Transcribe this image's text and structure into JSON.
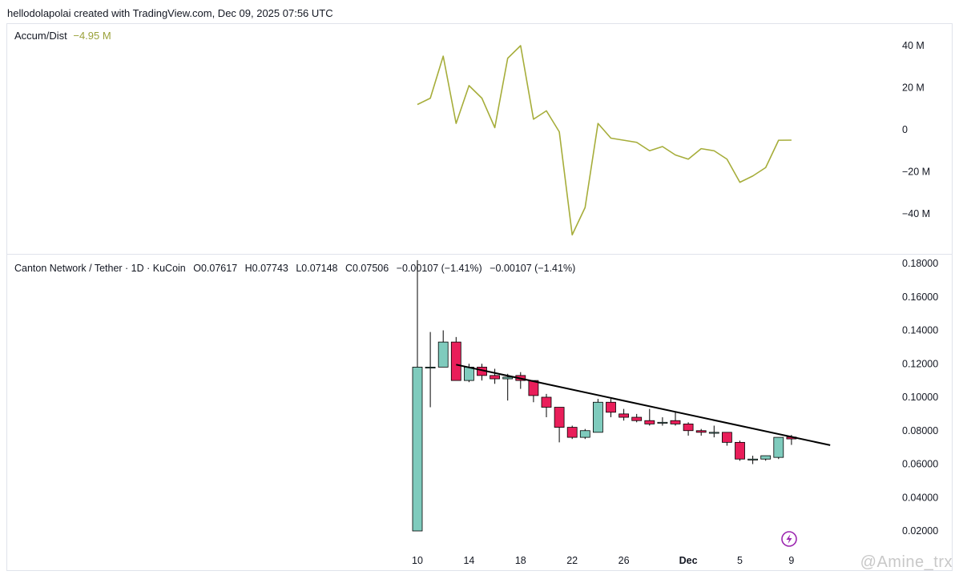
{
  "header": {
    "text": "hellodolapolai created with TradingView.com, Dec 09, 2025 07:56 UTC"
  },
  "indicator": {
    "name": "Accum/Dist",
    "value": "−4.95 M"
  },
  "symbol": {
    "name": "Canton Network / Tether · 1D · KuCoin",
    "open": "O0.07617",
    "high": "H0.07743",
    "low": "L0.07148",
    "close": "C0.07506",
    "change1": "−0.00107 (−1.41%)",
    "change2": "−0.00107 (−1.41%)"
  },
  "watermark": "@Amine_trx",
  "colors": {
    "up": "#7fcbbd",
    "down": "#e91e5a",
    "ad_line": "#a6ad3a",
    "trendline": "#000000"
  },
  "chart_data": [
    {
      "type": "line",
      "title": "Accum/Dist",
      "y_ticks": [
        "40 M",
        "20 M",
        "0",
        "−20 M",
        "−40 M"
      ],
      "ylim": [
        -52,
        48
      ],
      "series": [
        {
          "name": "Accum/Dist",
          "x_index": [
            0,
            1,
            2,
            3,
            4,
            5,
            6,
            7,
            8,
            9,
            10,
            11,
            12,
            13,
            14,
            15,
            16,
            17,
            18,
            19,
            20,
            21,
            22,
            23,
            24,
            25,
            26,
            27,
            28,
            29
          ],
          "values": [
            12,
            15,
            35,
            3,
            21,
            15,
            1,
            34,
            40,
            5,
            9,
            -1,
            -50,
            -37,
            3,
            -4,
            -5,
            -6,
            -10,
            -8,
            -12,
            -14,
            -9,
            -10,
            -14,
            -25,
            -22,
            -18,
            -5,
            -4.95
          ]
        }
      ]
    },
    {
      "type": "candlestick",
      "title": "Canton Network / Tether · 1D · KuCoin",
      "x_ticks": [
        {
          "label": "10",
          "index": 0
        },
        {
          "label": "14",
          "index": 4
        },
        {
          "label": "18",
          "index": 8
        },
        {
          "label": "22",
          "index": 12
        },
        {
          "label": "26",
          "index": 16
        },
        {
          "label": "Dec",
          "index": 21
        },
        {
          "label": "5",
          "index": 25
        },
        {
          "label": "9",
          "index": 29
        }
      ],
      "y_ticks": [
        "0.18000",
        "0.16000",
        "0.14000",
        "0.12000",
        "0.10000",
        "0.08000",
        "0.06000",
        "0.04000",
        "0.02000"
      ],
      "ylim": [
        0.0105,
        0.182
      ],
      "candles": [
        {
          "o": 0.02,
          "h": 0.182,
          "l": 0.02,
          "c": 0.118
        },
        {
          "o": 0.118,
          "h": 0.139,
          "l": 0.094,
          "c": 0.118
        },
        {
          "o": 0.118,
          "h": 0.14,
          "l": 0.118,
          "c": 0.133
        },
        {
          "o": 0.133,
          "h": 0.136,
          "l": 0.11,
          "c": 0.11
        },
        {
          "o": 0.11,
          "h": 0.12,
          "l": 0.109,
          "c": 0.118
        },
        {
          "o": 0.118,
          "h": 0.12,
          "l": 0.11,
          "c": 0.113
        },
        {
          "o": 0.113,
          "h": 0.117,
          "l": 0.108,
          "c": 0.111
        },
        {
          "o": 0.111,
          "h": 0.114,
          "l": 0.098,
          "c": 0.112
        },
        {
          "o": 0.113,
          "h": 0.115,
          "l": 0.105,
          "c": 0.11
        },
        {
          "o": 0.11,
          "h": 0.11,
          "l": 0.097,
          "c": 0.101
        },
        {
          "o": 0.1,
          "h": 0.102,
          "l": 0.088,
          "c": 0.094
        },
        {
          "o": 0.094,
          "h": 0.094,
          "l": 0.073,
          "c": 0.082
        },
        {
          "o": 0.082,
          "h": 0.083,
          "l": 0.075,
          "c": 0.076
        },
        {
          "o": 0.076,
          "h": 0.081,
          "l": 0.075,
          "c": 0.08
        },
        {
          "o": 0.079,
          "h": 0.099,
          "l": 0.079,
          "c": 0.097
        },
        {
          "o": 0.097,
          "h": 0.099,
          "l": 0.088,
          "c": 0.091
        },
        {
          "o": 0.09,
          "h": 0.093,
          "l": 0.086,
          "c": 0.088
        },
        {
          "o": 0.088,
          "h": 0.09,
          "l": 0.085,
          "c": 0.086
        },
        {
          "o": 0.086,
          "h": 0.093,
          "l": 0.083,
          "c": 0.084
        },
        {
          "o": 0.085,
          "h": 0.088,
          "l": 0.083,
          "c": 0.085
        },
        {
          "o": 0.086,
          "h": 0.091,
          "l": 0.083,
          "c": 0.084
        },
        {
          "o": 0.084,
          "h": 0.085,
          "l": 0.077,
          "c": 0.08
        },
        {
          "o": 0.08,
          "h": 0.081,
          "l": 0.077,
          "c": 0.079
        },
        {
          "o": 0.079,
          "h": 0.083,
          "l": 0.076,
          "c": 0.079
        },
        {
          "o": 0.079,
          "h": 0.079,
          "l": 0.071,
          "c": 0.073
        },
        {
          "o": 0.073,
          "h": 0.074,
          "l": 0.062,
          "c": 0.063
        },
        {
          "o": 0.063,
          "h": 0.065,
          "l": 0.06,
          "c": 0.063
        },
        {
          "o": 0.063,
          "h": 0.065,
          "l": 0.062,
          "c": 0.065
        },
        {
          "o": 0.064,
          "h": 0.076,
          "l": 0.063,
          "c": 0.076
        },
        {
          "o": 0.07617,
          "h": 0.07743,
          "l": 0.07148,
          "c": 0.07506
        }
      ],
      "trendline": {
        "from": {
          "index": 3,
          "value": 0.1195
        },
        "to": {
          "index": 32,
          "value": 0.0713
        }
      }
    }
  ]
}
